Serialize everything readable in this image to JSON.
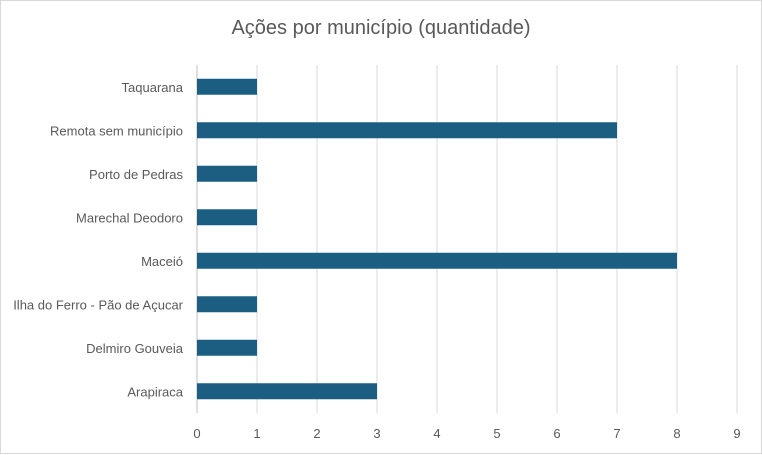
{
  "chart_data": {
    "type": "bar",
    "orientation": "horizontal",
    "title": "Ações por município (quantidade)",
    "categories": [
      "Taquarana",
      "Remota sem município",
      "Porto de Pedras",
      "Marechal Deodoro",
      "Maceió",
      "Ilha do Ferro - Pão de Açucar",
      "Delmiro Gouveia",
      "Arapiraca"
    ],
    "values": [
      1,
      7,
      1,
      1,
      8,
      1,
      1,
      3
    ],
    "xlim": [
      0,
      9
    ],
    "xticks": [
      0,
      1,
      2,
      3,
      4,
      5,
      6,
      7,
      8,
      9
    ],
    "xlabel": "",
    "ylabel": "",
    "grid": "vertical",
    "legend": "none",
    "bar_color": "#1b5e82"
  }
}
